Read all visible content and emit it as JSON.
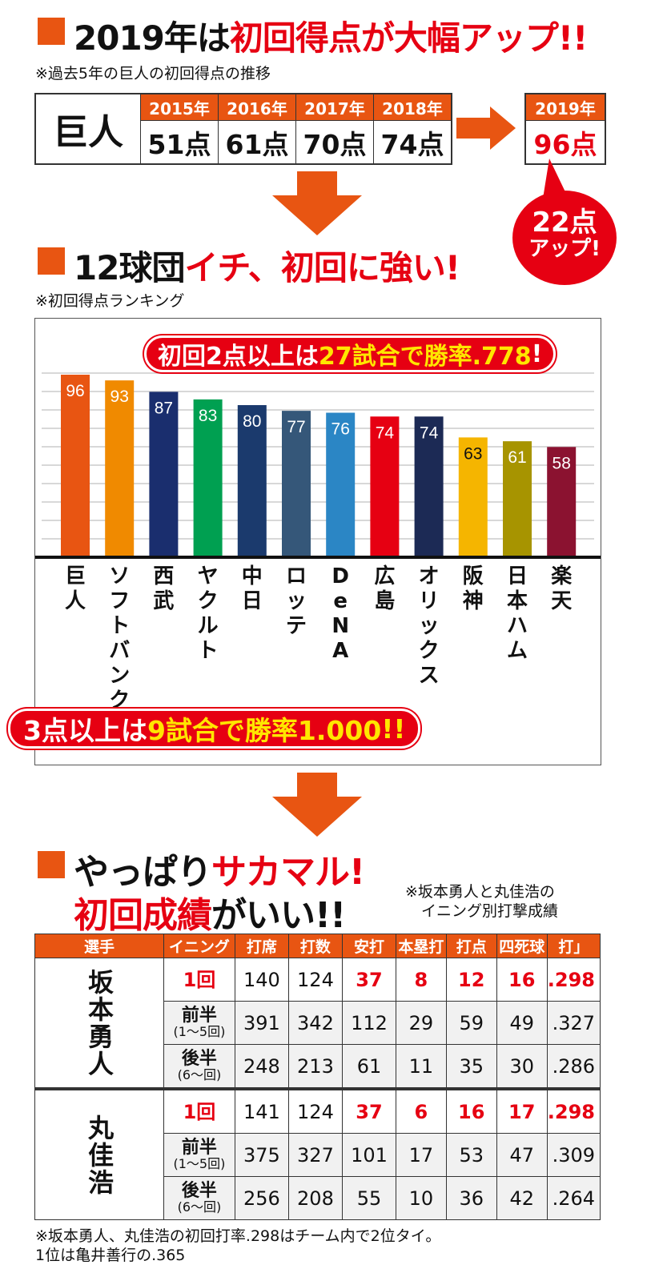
{
  "section1": {
    "title_prefix": "2019年は",
    "title_red": "初回得点が大幅アップ",
    "title_suffix": "!!",
    "note": "※過去5年の巨人の初回得点の推移",
    "team": "巨人",
    "years": [
      {
        "year": "2015年",
        "points": "51点"
      },
      {
        "year": "2016年",
        "points": "61点"
      },
      {
        "year": "2017年",
        "points": "70点"
      },
      {
        "year": "2018年",
        "points": "74点"
      }
    ],
    "latest_year": "2019年",
    "latest_points": "96点",
    "badge_line1": "22点",
    "badge_line2": "アップ!"
  },
  "section2": {
    "title_prefix": "12球団",
    "title_red": "イチ、初回に強い!",
    "note": "※初回得点ランキング",
    "pill1_white": "初回2点以上は",
    "pill1_yellow": "27試合で勝率.778",
    "pill1_end": "!",
    "pill2_white1": "3点以上は",
    "pill2_yellow": "9試合で勝率1.000",
    "pill2_end": "!!"
  },
  "chart_data": {
    "type": "bar",
    "categories": [
      "巨人",
      "ソフトバンク",
      "西武",
      "ヤクルト",
      "中日",
      "ロッテ",
      "DeNA",
      "広島",
      "オリックス",
      "阪神",
      "日本ハム",
      "楽天"
    ],
    "values": [
      96,
      93,
      87,
      83,
      80,
      77,
      76,
      74,
      74,
      63,
      61,
      58
    ],
    "colors": [
      "#e85512",
      "#f08a00",
      "#1a2e6e",
      "#00a051",
      "#1b3a6d",
      "#355779",
      "#2b86c5",
      "#e60012",
      "#1c2a55",
      "#f5b500",
      "#a79400",
      "#8b1230"
    ],
    "label_colors": [
      "#fff",
      "#fff",
      "#fff",
      "#fff",
      "#fff",
      "#fff",
      "#fff",
      "#fff",
      "#fff",
      "#111",
      "#fff",
      "#fff"
    ],
    "ylim": [
      0,
      100
    ],
    "grid": true
  },
  "section3": {
    "title_line1_black": "やっぱり",
    "title_line1_red": "サカマル!",
    "title_line2_red": "初回成績",
    "title_line2_black": "がいい",
    "title_line2_end": "!!",
    "note_line1": "※坂本勇人と丸佳浩の",
    "note_line2": "イニング別打撃成績",
    "headers": [
      "選手",
      "イニング",
      "打席",
      "打数",
      "安打",
      "本塁打",
      "打点",
      "四死球",
      "打」"
    ],
    "players": [
      {
        "name": "坂本勇人",
        "rows": [
          {
            "inning": "1回",
            "sub": "",
            "values": [
              "140",
              "124",
              "37",
              "8",
              "12",
              "16",
              ".298"
            ]
          },
          {
            "inning": "前半",
            "sub": "(1〜5回)",
            "values": [
              "391",
              "342",
              "112",
              "29",
              "59",
              "49",
              ".327"
            ]
          },
          {
            "inning": "後半",
            "sub": "(6〜回)",
            "values": [
              "248",
              "213",
              "61",
              "11",
              "35",
              "30",
              ".286"
            ]
          }
        ]
      },
      {
        "name": "丸佳浩",
        "rows": [
          {
            "inning": "1回",
            "sub": "",
            "values": [
              "141",
              "124",
              "37",
              "6",
              "16",
              "17",
              ".298"
            ]
          },
          {
            "inning": "前半",
            "sub": "(1〜5回)",
            "values": [
              "375",
              "327",
              "101",
              "17",
              "53",
              "47",
              ".309"
            ]
          },
          {
            "inning": "後半",
            "sub": "(6〜回)",
            "values": [
              "256",
              "208",
              "55",
              "10",
              "36",
              "42",
              ".264"
            ]
          }
        ]
      }
    ],
    "footnote_line1": "※坂本勇人、丸佳浩の初回打率.298はチーム内で2位タイ。",
    "footnote_line2": "1位は亀井善行の.365"
  }
}
